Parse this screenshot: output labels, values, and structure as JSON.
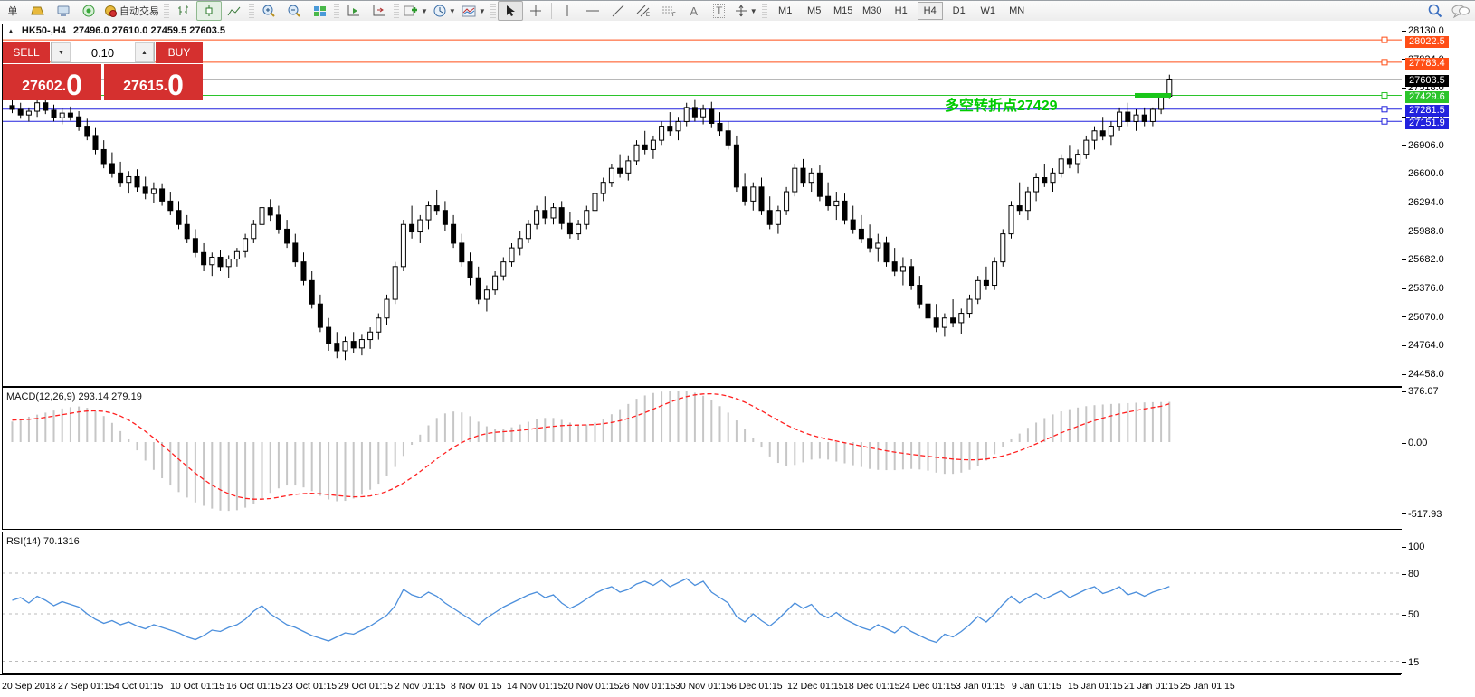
{
  "toolbar": {
    "new_order_label": "单",
    "autotrading_label": "自动交易",
    "text_tool": "A",
    "label_tool": "T",
    "channel_sub": "E",
    "fibo_sub": "F",
    "timeframes": [
      "M1",
      "M5",
      "M15",
      "M30",
      "H1",
      "H4",
      "D1",
      "W1",
      "MN"
    ],
    "active_timeframe": "H4"
  },
  "chart": {
    "header": {
      "symbol_period": "HK50-,H4",
      "ohlc": "27496.0 27610.0 27459.5 27603.5"
    },
    "annotation": {
      "text": "多空转折点27429",
      "color": "#00CC00"
    },
    "highlight_segment": {
      "price": 27429.6,
      "color": "#19C619"
    },
    "levels": [
      {
        "label": "28022.5",
        "value": 28022.5,
        "color": "#FF4E16",
        "badge": "#FF4E16",
        "handle": true
      },
      {
        "label": "27783.4",
        "value": 27783.4,
        "color": "#FF4E16",
        "badge": "#FF4E16",
        "handle": true
      },
      {
        "label": "27603.5",
        "value": 27603.5,
        "color": "#B8B8B8",
        "badge": "#000000",
        "handle": false
      },
      {
        "label": "27429.6",
        "value": 27429.6,
        "color": "#2BC42B",
        "badge": "#2BC42B",
        "handle": true
      },
      {
        "label": "27281.5",
        "value": 27281.5,
        "color": "#2222DD",
        "badge": "#2222DD",
        "handle": true
      },
      {
        "label": "27151.9",
        "value": 27151.9,
        "color": "#2222DD",
        "badge": "#2222DD",
        "handle": true
      }
    ],
    "y_ticks": [
      28130.0,
      27824.0,
      27518.0,
      27212.0,
      26906.0,
      26600.0,
      26294.0,
      25988.0,
      25682.0,
      25376.0,
      25070.0,
      24764.0,
      24458.0
    ]
  },
  "trade_panel": {
    "sell_label": "SELL",
    "buy_label": "BUY",
    "volume": "0.10",
    "sell_price_main": "27602",
    "sell_price_frac": ".",
    "sell_price_big": "0",
    "buy_price_main": "27615",
    "buy_price_frac": ".",
    "buy_price_big": "0",
    "red": "#D5302F"
  },
  "chart_data": {
    "type": "candlestick",
    "symbol": "HK50-",
    "timeframe": "H4",
    "header_ohlc": {
      "open": 27496.0,
      "high": 27610.0,
      "low": 27459.5,
      "close": 27603.5
    },
    "x_labels": [
      "20 Sep 2018",
      "27 Sep 01:15",
      "4 Oct 01:15",
      "10 Oct 01:15",
      "16 Oct 01:15",
      "23 Oct 01:15",
      "29 Oct 01:15",
      "2 Nov 01:15",
      "8 Nov 01:15",
      "14 Nov 01:15",
      "20 Nov 01:15",
      "26 Nov 01:15",
      "30 Nov 01:15",
      "6 Dec 01:15",
      "12 Dec 01:15",
      "18 Dec 01:15",
      "24 Dec 01:15",
      "3 Jan 01:15",
      "9 Jan 01:15",
      "15 Jan 01:15",
      "21 Jan 01:15",
      "25 Jan 01:15"
    ],
    "ohlc": [
      [
        27320,
        27420,
        27240,
        27280
      ],
      [
        27280,
        27350,
        27180,
        27220
      ],
      [
        27220,
        27300,
        27150,
        27260
      ],
      [
        27260,
        27380,
        27200,
        27350
      ],
      [
        27350,
        27400,
        27230,
        27270
      ],
      [
        27270,
        27330,
        27150,
        27190
      ],
      [
        27190,
        27290,
        27120,
        27240
      ],
      [
        27240,
        27310,
        27160,
        27200
      ],
      [
        27200,
        27260,
        27050,
        27100
      ],
      [
        27100,
        27180,
        26950,
        27000
      ],
      [
        27000,
        27080,
        26800,
        26850
      ],
      [
        26850,
        26950,
        26650,
        26700
      ],
      [
        26700,
        26820,
        26550,
        26600
      ],
      [
        26600,
        26720,
        26450,
        26500
      ],
      [
        26500,
        26620,
        26380,
        26560
      ],
      [
        26560,
        26640,
        26400,
        26450
      ],
      [
        26450,
        26560,
        26320,
        26380
      ],
      [
        26380,
        26500,
        26280,
        26430
      ],
      [
        26430,
        26490,
        26250,
        26300
      ],
      [
        26300,
        26400,
        26150,
        26200
      ],
      [
        26200,
        26300,
        26000,
        26050
      ],
      [
        26050,
        26150,
        25850,
        25900
      ],
      [
        25900,
        26000,
        25700,
        25750
      ],
      [
        25750,
        25850,
        25550,
        25620
      ],
      [
        25620,
        25750,
        25500,
        25700
      ],
      [
        25700,
        25780,
        25550,
        25600
      ],
      [
        25600,
        25720,
        25480,
        25680
      ],
      [
        25680,
        25800,
        25600,
        25760
      ],
      [
        25760,
        25950,
        25700,
        25900
      ],
      [
        25900,
        26100,
        25850,
        26050
      ],
      [
        26050,
        26280,
        26000,
        26230
      ],
      [
        26230,
        26320,
        26080,
        26150
      ],
      [
        26150,
        26250,
        25950,
        26000
      ],
      [
        26000,
        26100,
        25800,
        25850
      ],
      [
        25850,
        25950,
        25600,
        25650
      ],
      [
        25650,
        25750,
        25400,
        25450
      ],
      [
        25450,
        25550,
        25150,
        25200
      ],
      [
        25200,
        25300,
        24900,
        24950
      ],
      [
        24950,
        25050,
        24700,
        24780
      ],
      [
        24780,
        24900,
        24620,
        24700
      ],
      [
        24700,
        24850,
        24600,
        24800
      ],
      [
        24800,
        24900,
        24680,
        24730
      ],
      [
        24730,
        24870,
        24650,
        24820
      ],
      [
        24820,
        24950,
        24720,
        24900
      ],
      [
        24900,
        25100,
        24820,
        25050
      ],
      [
        25050,
        25300,
        24980,
        25250
      ],
      [
        25250,
        25650,
        25200,
        25600
      ],
      [
        25600,
        26100,
        25550,
        26050
      ],
      [
        26050,
        26250,
        25900,
        25970
      ],
      [
        25970,
        26150,
        25850,
        26100
      ],
      [
        26100,
        26300,
        26000,
        26250
      ],
      [
        26250,
        26420,
        26150,
        26200
      ],
      [
        26200,
        26300,
        25980,
        26050
      ],
      [
        26050,
        26150,
        25800,
        25850
      ],
      [
        25850,
        25950,
        25600,
        25650
      ],
      [
        25650,
        25750,
        25400,
        25480
      ],
      [
        25480,
        25600,
        25200,
        25250
      ],
      [
        25250,
        25400,
        25120,
        25350
      ],
      [
        25350,
        25550,
        25300,
        25500
      ],
      [
        25500,
        25700,
        25450,
        25650
      ],
      [
        25650,
        25850,
        25600,
        25800
      ],
      [
        25800,
        25980,
        25720,
        25900
      ],
      [
        25900,
        26100,
        25850,
        26050
      ],
      [
        26050,
        26250,
        26000,
        26200
      ],
      [
        26200,
        26350,
        26050,
        26120
      ],
      [
        26120,
        26280,
        26050,
        26230
      ],
      [
        26230,
        26300,
        26000,
        26060
      ],
      [
        26060,
        26180,
        25900,
        25950
      ],
      [
        25950,
        26100,
        25880,
        26050
      ],
      [
        26050,
        26250,
        26000,
        26200
      ],
      [
        26200,
        26420,
        26150,
        26380
      ],
      [
        26380,
        26550,
        26300,
        26500
      ],
      [
        26500,
        26700,
        26450,
        26650
      ],
      [
        26650,
        26800,
        26550,
        26600
      ],
      [
        26600,
        26780,
        26520,
        26730
      ],
      [
        26730,
        26950,
        26680,
        26900
      ],
      [
        26900,
        27050,
        26800,
        26850
      ],
      [
        26850,
        27000,
        26750,
        26950
      ],
      [
        26950,
        27150,
        26900,
        27100
      ],
      [
        27100,
        27250,
        27000,
        27050
      ],
      [
        27050,
        27200,
        26950,
        27150
      ],
      [
        27150,
        27350,
        27100,
        27300
      ],
      [
        27300,
        27380,
        27150,
        27200
      ],
      [
        27200,
        27330,
        27120,
        27280
      ],
      [
        27280,
        27360,
        27080,
        27130
      ],
      [
        27130,
        27250,
        27000,
        27050
      ],
      [
        27050,
        27150,
        26850,
        26900
      ],
      [
        26900,
        27000,
        26400,
        26450
      ],
      [
        26450,
        26600,
        26250,
        26300
      ],
      [
        26300,
        26500,
        26200,
        26450
      ],
      [
        26450,
        26550,
        26150,
        26200
      ],
      [
        26200,
        26350,
        26000,
        26050
      ],
      [
        26050,
        26250,
        25950,
        26200
      ],
      [
        26200,
        26450,
        26150,
        26400
      ],
      [
        26400,
        26700,
        26350,
        26650
      ],
      [
        26650,
        26750,
        26450,
        26500
      ],
      [
        26500,
        26650,
        26400,
        26600
      ],
      [
        26600,
        26680,
        26300,
        26350
      ],
      [
        26350,
        26500,
        26200,
        26250
      ],
      [
        26250,
        26400,
        26100,
        26300
      ],
      [
        26300,
        26380,
        26050,
        26100
      ],
      [
        26100,
        26250,
        25950,
        26000
      ],
      [
        26000,
        26150,
        25850,
        25900
      ],
      [
        25900,
        26050,
        25750,
        25800
      ],
      [
        25800,
        25950,
        25650,
        25850
      ],
      [
        25850,
        25920,
        25600,
        25650
      ],
      [
        25650,
        25800,
        25500,
        25550
      ],
      [
        25550,
        25700,
        25400,
        25600
      ],
      [
        25600,
        25680,
        25350,
        25400
      ],
      [
        25400,
        25500,
        25150,
        25200
      ],
      [
        25200,
        25350,
        25000,
        25050
      ],
      [
        25050,
        25200,
        24900,
        24950
      ],
      [
        24950,
        25100,
        24850,
        25050
      ],
      [
        25050,
        25250,
        24950,
        25000
      ],
      [
        25000,
        25150,
        24880,
        25100
      ],
      [
        25100,
        25300,
        25050,
        25250
      ],
      [
        25250,
        25500,
        25200,
        25450
      ],
      [
        25450,
        25600,
        25350,
        25400
      ],
      [
        25400,
        25700,
        25350,
        25650
      ],
      [
        25650,
        26000,
        25600,
        25950
      ],
      [
        25950,
        26300,
        25900,
        26250
      ],
      [
        26250,
        26500,
        26150,
        26200
      ],
      [
        26200,
        26450,
        26100,
        26400
      ],
      [
        26400,
        26600,
        26300,
        26550
      ],
      [
        26550,
        26700,
        26450,
        26500
      ],
      [
        26500,
        26650,
        26400,
        26600
      ],
      [
        26600,
        26800,
        26550,
        26750
      ],
      [
        26750,
        26900,
        26650,
        26700
      ],
      [
        26700,
        26850,
        26600,
        26800
      ],
      [
        26800,
        27000,
        26750,
        26950
      ],
      [
        26950,
        27100,
        26850,
        27050
      ],
      [
        27050,
        27200,
        26950,
        27000
      ],
      [
        27000,
        27150,
        26900,
        27100
      ],
      [
        27100,
        27300,
        27050,
        27250
      ],
      [
        27250,
        27350,
        27100,
        27150
      ],
      [
        27150,
        27280,
        27050,
        27220
      ],
      [
        27220,
        27300,
        27100,
        27150
      ],
      [
        27150,
        27300,
        27100,
        27280
      ],
      [
        27280,
        27450,
        27230,
        27420
      ],
      [
        27420,
        27650,
        27400,
        27603.5
      ]
    ],
    "macd": {
      "label": "MACD(12,26,9) 293.14 279.19",
      "ticks": [
        "376.07",
        "0.00",
        "-517.93"
      ],
      "tick_values": [
        376.07,
        0,
        -517.93
      ],
      "hist": [
        150,
        170,
        185,
        200,
        215,
        230,
        245,
        255,
        260,
        250,
        225,
        190,
        140,
        80,
        20,
        -60,
        -135,
        -203,
        -264,
        -317,
        -365,
        -405,
        -440,
        -465,
        -486,
        -500,
        -502,
        -497,
        -479,
        -452,
        -412,
        -371,
        -338,
        -317,
        -317,
        -331,
        -358,
        -392,
        -419,
        -432,
        -429,
        -412,
        -385,
        -348,
        -304,
        -250,
        -182,
        -101,
        -20,
        54,
        122,
        176,
        209,
        223,
        216,
        189,
        149,
        115,
        95,
        95,
        108,
        128,
        148,
        169,
        176,
        176,
        162,
        142,
        128,
        128,
        142,
        169,
        203,
        240,
        278,
        316,
        340,
        358,
        368,
        374,
        376,
        372,
        360,
        338,
        305,
        262,
        215,
        158,
        95,
        30,
        -40,
        -105,
        -152,
        -173,
        -167,
        -148,
        -128,
        -122,
        -128,
        -142,
        -155,
        -169,
        -182,
        -196,
        -203,
        -205,
        -205,
        -200,
        -196,
        -200,
        -209,
        -223,
        -232,
        -232,
        -223,
        -203,
        -173,
        -135,
        -88,
        -34,
        20,
        62,
        104,
        142,
        175,
        202,
        224,
        240,
        252,
        262,
        269,
        274,
        278,
        281,
        284,
        287,
        289,
        291,
        292,
        293.14
      ],
      "signal": [
        160,
        162,
        166,
        172,
        180,
        190,
        200,
        210,
        220,
        226,
        228,
        224,
        212,
        190,
        160,
        122,
        78,
        30,
        -20,
        -72,
        -125,
        -177,
        -227,
        -273,
        -314,
        -349,
        -377,
        -398,
        -411,
        -417,
        -417,
        -412,
        -403,
        -392,
        -382,
        -376,
        -374,
        -377,
        -383,
        -390,
        -396,
        -400,
        -399,
        -393,
        -380,
        -360,
        -333,
        -299,
        -259,
        -215,
        -169,
        -123,
        -79,
        -39,
        -4,
        25,
        47,
        62,
        71,
        76,
        80,
        85,
        92,
        100,
        108,
        115,
        120,
        123,
        124,
        125,
        128,
        134,
        143,
        156,
        172,
        192,
        215,
        240,
        266,
        291,
        313,
        331,
        344,
        351,
        352,
        347,
        335,
        316,
        291,
        261,
        228,
        193,
        158,
        125,
        96,
        71,
        51,
        34,
        20,
        7,
        -5,
        -17,
        -29,
        -41,
        -52,
        -63,
        -73,
        -82,
        -90,
        -97,
        -104,
        -111,
        -118,
        -124,
        -128,
        -130,
        -129,
        -124,
        -115,
        -101,
        -84,
        -63,
        -39,
        -13,
        14,
        41,
        67,
        92,
        115,
        137,
        157,
        175,
        191,
        206,
        219,
        231,
        242,
        252,
        261,
        279.19
      ]
    },
    "rsi": {
      "label": "RSI(14) 70.1316",
      "ticks": [
        "100",
        "80",
        "50",
        "15"
      ],
      "tick_values": [
        100,
        80,
        50,
        15
      ],
      "levels": [
        80,
        50,
        15
      ],
      "values": [
        60,
        62,
        58,
        63,
        60,
        56,
        59,
        57,
        55,
        50,
        46,
        43,
        45,
        42,
        44,
        41,
        39,
        42,
        40,
        38,
        36,
        33,
        31,
        34,
        38,
        37,
        40,
        42,
        46,
        52,
        56,
        50,
        46,
        42,
        40,
        37,
        34,
        32,
        30,
        33,
        36,
        35,
        38,
        41,
        45,
        49,
        56,
        68,
        64,
        62,
        66,
        63,
        58,
        54,
        50,
        46,
        42,
        47,
        51,
        55,
        58,
        61,
        64,
        66,
        62,
        64,
        58,
        54,
        57,
        61,
        65,
        68,
        70,
        66,
        68,
        72,
        74,
        71,
        75,
        70,
        73,
        76,
        71,
        74,
        66,
        62,
        58,
        48,
        44,
        50,
        45,
        41,
        46,
        52,
        58,
        54,
        57,
        50,
        47,
        51,
        46,
        43,
        40,
        38,
        42,
        39,
        36,
        41,
        37,
        34,
        31,
        29,
        35,
        33,
        37,
        42,
        48,
        44,
        50,
        57,
        63,
        58,
        62,
        65,
        61,
        64,
        67,
        62,
        65,
        68,
        70,
        65,
        67,
        70,
        64,
        66,
        63,
        66,
        68,
        70.13
      ]
    }
  }
}
